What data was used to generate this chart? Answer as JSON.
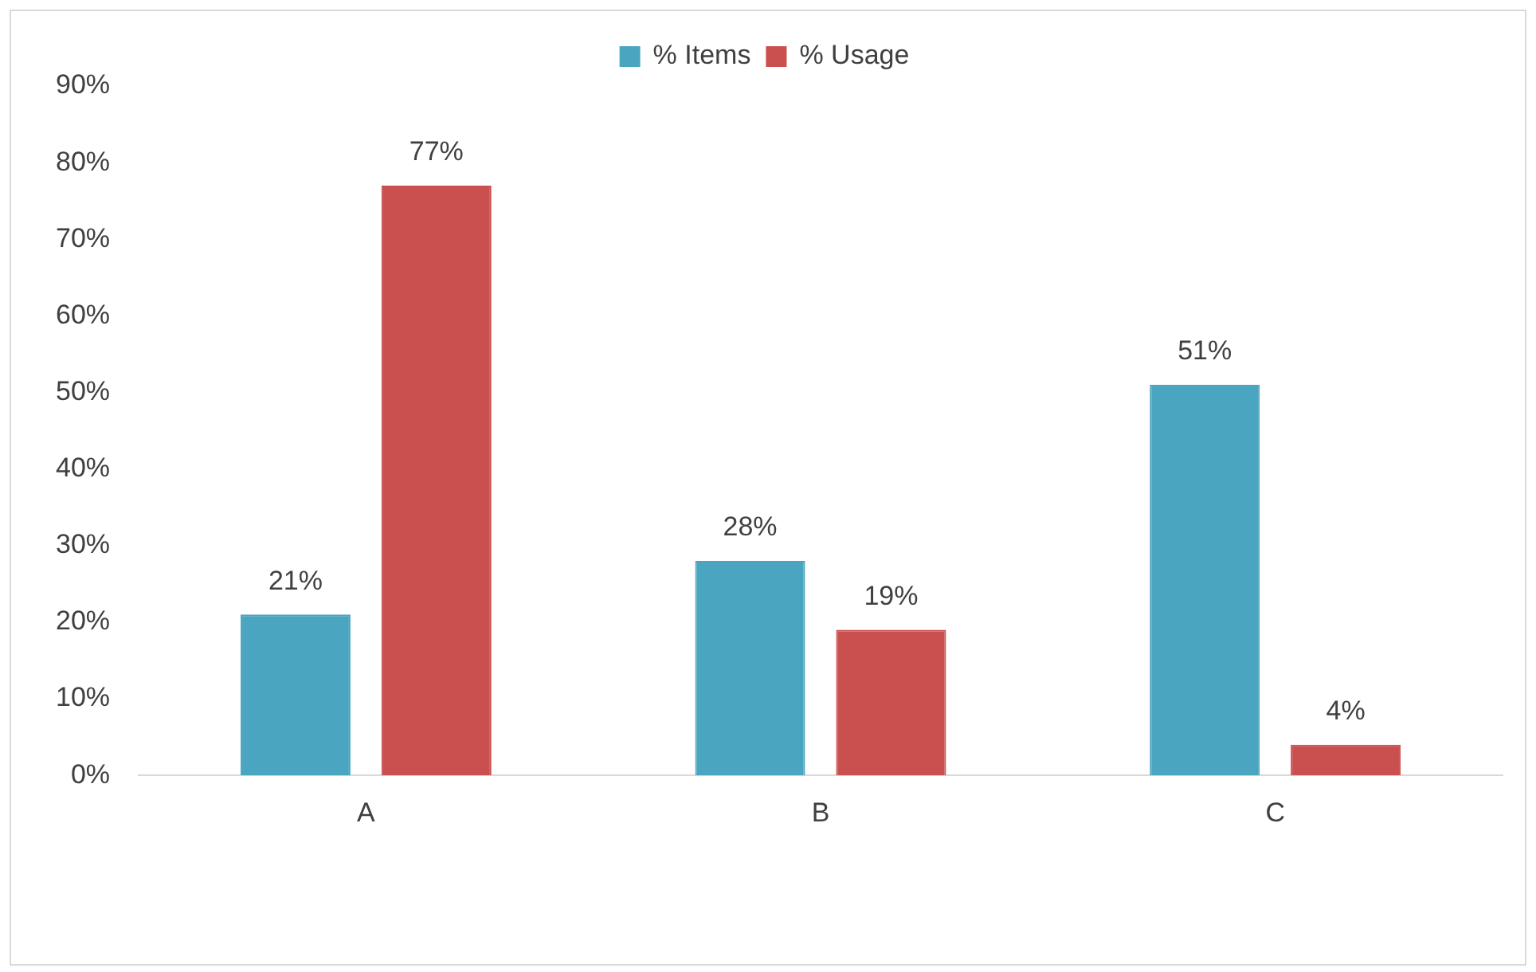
{
  "chart_data": {
    "type": "bar",
    "categories": [
      "A",
      "B",
      "C"
    ],
    "series": [
      {
        "name": "% Items",
        "color": "#4aa5c0",
        "values": [
          21,
          28,
          51
        ],
        "value_labels": [
          "21%",
          "28%",
          "51%"
        ]
      },
      {
        "name": "% Usage",
        "color": "#c9504f",
        "values": [
          77,
          19,
          4
        ],
        "value_labels": [
          "77%",
          "19%",
          "4%"
        ]
      }
    ],
    "ylim": [
      0,
      90
    ],
    "yticks": [
      {
        "value": 0,
        "label": "0%"
      },
      {
        "value": 10,
        "label": "10%"
      },
      {
        "value": 20,
        "label": "20%"
      },
      {
        "value": 30,
        "label": "30%"
      },
      {
        "value": 40,
        "label": "40%"
      },
      {
        "value": 50,
        "label": "50%"
      },
      {
        "value": 60,
        "label": "60%"
      },
      {
        "value": 70,
        "label": "70%"
      },
      {
        "value": 80,
        "label": "80%"
      },
      {
        "value": 90,
        "label": "90%"
      }
    ],
    "grid": false,
    "legend": "top"
  }
}
